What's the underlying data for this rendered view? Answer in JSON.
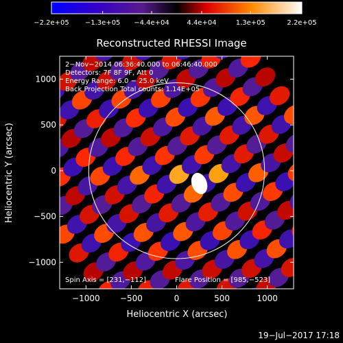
{
  "chart_data": {
    "type": "heatmap",
    "title": "Reconstructed RHESSI Image",
    "xlabel": "Heliocentric X (arcsec)",
    "ylabel": "Heliocentric Y (arcsec)",
    "xlim": [
      -1290,
      1290
    ],
    "ylim": [
      -1290,
      1250
    ],
    "xticks": [
      -1000,
      -500,
      0,
      500,
      1000
    ],
    "yticks": [
      -1000,
      -500,
      0,
      500,
      1000
    ],
    "xtick_labels": [
      "−1000",
      "−500",
      "0",
      "500",
      "1000"
    ],
    "ytick_labels": [
      "−1000",
      "−500",
      "0",
      "500",
      "1000"
    ],
    "colorbar": {
      "range": [
        -220000,
        220000
      ],
      "ticks": [
        -220000,
        -130000,
        -44000,
        44000,
        130000,
        220000
      ],
      "tick_labels": [
        "−2.2e+05",
        "−1.3e+05",
        "−4.4e+04",
        "4.4e+04",
        "1.3e+05",
        "2.2e+05"
      ],
      "colors": [
        "#0000ff",
        "#3b00c0",
        "#6a1fa0",
        "#000000",
        "#ff2000",
        "#ff9a00",
        "#ffffff"
      ]
    },
    "annotations": [
      "2−Nov−2014 06:36:40.000 to 06:46:40.000",
      "Detectors: 7F 8F 9F, Att 0",
      "Energy Range: 6.0 − 25.0 keV",
      "Back Projection    Total counts: 1.14E+05"
    ],
    "spin_axis_label": "Spin Axis = [231,−112]",
    "flare_position_label": "Flare Position = [985,−523]",
    "spin_axis": [
      231,
      -112
    ],
    "solar_limb": {
      "center": [
        0,
        0
      ],
      "radius": 970
    },
    "peak": {
      "x": 240,
      "y": -100
    },
    "grid": false
  },
  "footer": {
    "date": "19−Jul−2017 17:18"
  }
}
